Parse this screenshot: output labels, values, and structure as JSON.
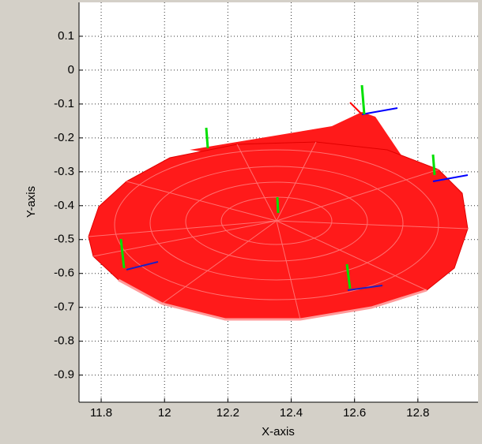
{
  "chart_data": {
    "type": "plot3d",
    "xlabel": "X-axis",
    "ylabel": "Y-axis",
    "xlim": [
      11.73,
      12.99
    ],
    "xticks": [
      11.8,
      12,
      12.2,
      12.4,
      12.6,
      12.8
    ],
    "ylim": [
      -0.98,
      0.2
    ],
    "yticks": [
      0.1,
      0,
      -0.1,
      -0.2,
      -0.3,
      -0.4,
      -0.5,
      -0.6,
      -0.7,
      -0.8,
      -0.9
    ],
    "grid": true
  }
}
